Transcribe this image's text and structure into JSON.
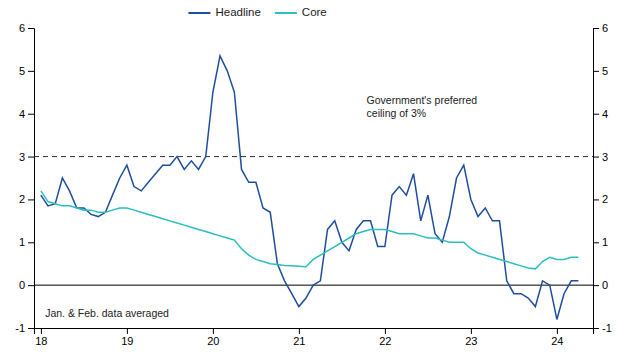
{
  "chart_data": {
    "type": "line",
    "x": [
      18.0,
      18.083,
      18.167,
      18.25,
      18.333,
      18.417,
      18.5,
      18.583,
      18.667,
      18.75,
      18.833,
      18.917,
      19.0,
      19.083,
      19.167,
      19.25,
      19.333,
      19.417,
      19.5,
      19.583,
      19.667,
      19.75,
      19.833,
      19.917,
      20.0,
      20.083,
      20.167,
      20.25,
      20.333,
      20.417,
      20.5,
      20.583,
      20.667,
      20.75,
      20.833,
      20.917,
      21.0,
      21.083,
      21.167,
      21.25,
      21.333,
      21.417,
      21.5,
      21.583,
      21.667,
      21.75,
      21.833,
      21.917,
      22.0,
      22.083,
      22.167,
      22.25,
      22.333,
      22.417,
      22.5,
      22.583,
      22.667,
      22.75,
      22.833,
      22.917,
      23.0,
      23.083,
      23.167,
      23.25,
      23.333,
      23.417,
      23.5,
      23.583,
      23.667,
      23.75,
      23.833,
      23.917,
      24.0,
      24.083,
      24.167,
      24.25
    ],
    "series": [
      {
        "name": "Headline",
        "color": "#1f4e9e",
        "values": [
          2.1,
          1.85,
          1.9,
          2.5,
          2.2,
          1.8,
          1.8,
          1.65,
          1.6,
          1.7,
          2.1,
          2.5,
          2.8,
          2.3,
          2.2,
          2.4,
          2.6,
          2.8,
          2.8,
          3.0,
          2.7,
          2.9,
          2.7,
          3.0,
          4.5,
          5.35,
          5.0,
          4.5,
          2.7,
          2.4,
          2.4,
          1.8,
          1.7,
          0.5,
          0.1,
          -0.2,
          -0.5,
          -0.3,
          0.0,
          0.1,
          1.3,
          1.5,
          1.0,
          0.8,
          1.3,
          1.5,
          1.5,
          0.9,
          0.9,
          2.1,
          2.3,
          2.1,
          2.6,
          1.5,
          2.1,
          1.2,
          1.0,
          1.6,
          2.5,
          2.8,
          2.0,
          1.6,
          1.8,
          1.5,
          1.5,
          0.1,
          -0.2,
          -0.2,
          -0.3,
          -0.5,
          0.1,
          0.0,
          -0.8,
          -0.2,
          0.1,
          0.1
        ]
      },
      {
        "name": "Core",
        "color": "#2abfbf",
        "values": [
          2.2,
          1.95,
          1.9,
          1.85,
          1.85,
          1.8,
          1.75,
          1.75,
          1.7,
          1.7,
          1.75,
          1.8,
          1.8,
          1.75,
          1.7,
          1.65,
          1.6,
          1.55,
          1.5,
          1.45,
          1.4,
          1.35,
          1.3,
          1.25,
          1.2,
          1.15,
          1.1,
          1.05,
          0.85,
          0.7,
          0.6,
          0.55,
          0.5,
          0.48,
          0.46,
          0.45,
          0.44,
          0.43,
          0.6,
          0.7,
          0.8,
          0.9,
          1.0,
          1.1,
          1.2,
          1.25,
          1.3,
          1.3,
          1.3,
          1.25,
          1.2,
          1.2,
          1.2,
          1.15,
          1.1,
          1.1,
          1.05,
          1.0,
          1.0,
          1.0,
          0.85,
          0.75,
          0.7,
          0.65,
          0.6,
          0.55,
          0.5,
          0.45,
          0.4,
          0.38,
          0.55,
          0.65,
          0.6,
          0.6,
          0.65,
          0.65
        ]
      }
    ],
    "xlim": [
      17.92,
      24.42
    ],
    "xticks": [
      18,
      19,
      20,
      21,
      22,
      23,
      24
    ],
    "ylim": [
      -1,
      6
    ],
    "yticks": [
      -1,
      0,
      1,
      2,
      3,
      4,
      5,
      6
    ],
    "y2lim": [
      -1,
      6
    ],
    "y2ticks": [
      -1,
      0,
      1,
      2,
      3,
      4,
      5,
      6
    ],
    "reference_lines": [
      {
        "value": 0,
        "color": "#000000"
      },
      {
        "value": 3.0,
        "color": "#333333",
        "line_style": "dashed",
        "label": [
          "Government's preferred",
          "ceiling of 3%"
        ]
      }
    ],
    "annotations": [
      {
        "text": "Jan. & Feb. data averaged",
        "x": 18.05,
        "y": -0.82
      }
    ],
    "legend": "top",
    "grid": false
  }
}
